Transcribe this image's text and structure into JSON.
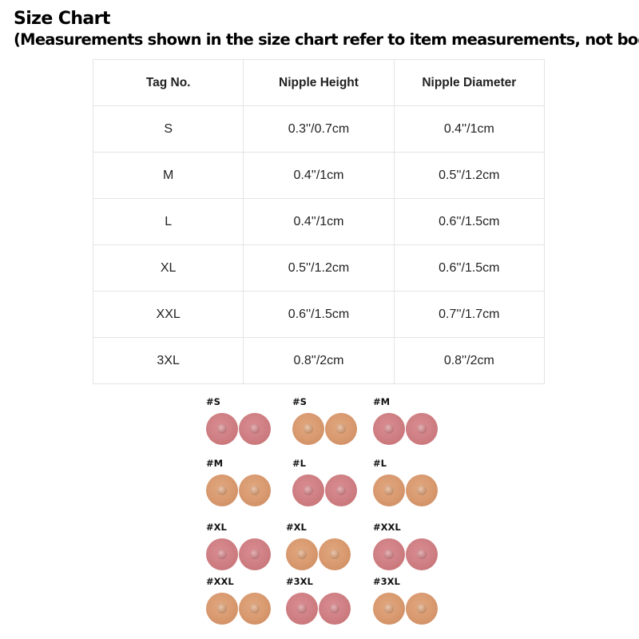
{
  "header": {
    "title": "Size Chart",
    "subtitle": "(Measurements shown in the size chart refer to item measurements, not body)"
  },
  "table": {
    "headers": [
      "Tag No.",
      "Nipple Height",
      "Nipple Diameter"
    ],
    "rows": [
      [
        "S",
        "0.3''/0.7cm",
        "0.4''/1cm"
      ],
      [
        "M",
        "0.4''/1cm",
        "0.5''/1.2cm"
      ],
      [
        "L",
        "0.4''/1cm",
        "0.6''/1.5cm"
      ],
      [
        "XL",
        "0.5''/1.2cm",
        "0.6''/1.5cm"
      ],
      [
        "XXL",
        "0.6''/1.5cm",
        "0.7''/1.7cm"
      ],
      [
        "3XL",
        "0.8''/2cm",
        "0.8''/2cm"
      ]
    ]
  },
  "samples": [
    {
      "label": "#S",
      "tone": "pink"
    },
    {
      "label": "#S",
      "tone": "tan"
    },
    {
      "label": "#M",
      "tone": "pink"
    },
    {
      "label": "#M",
      "tone": "tan"
    },
    {
      "label": "#L",
      "tone": "pink"
    },
    {
      "label": "#L",
      "tone": "tan"
    },
    {
      "label": "#XL",
      "tone": "pink"
    },
    {
      "label": "#XL",
      "tone": "tan"
    },
    {
      "label": "#XXL",
      "tone": "pink"
    },
    {
      "label": "#XXL",
      "tone": "tan"
    },
    {
      "label": "#3XL",
      "tone": "pink"
    },
    {
      "label": "#3XL",
      "tone": "tan"
    }
  ],
  "colors": {
    "pink_tone": "#d08185",
    "tan_tone": "#d99a70",
    "table_border": "#e4e4e4"
  }
}
